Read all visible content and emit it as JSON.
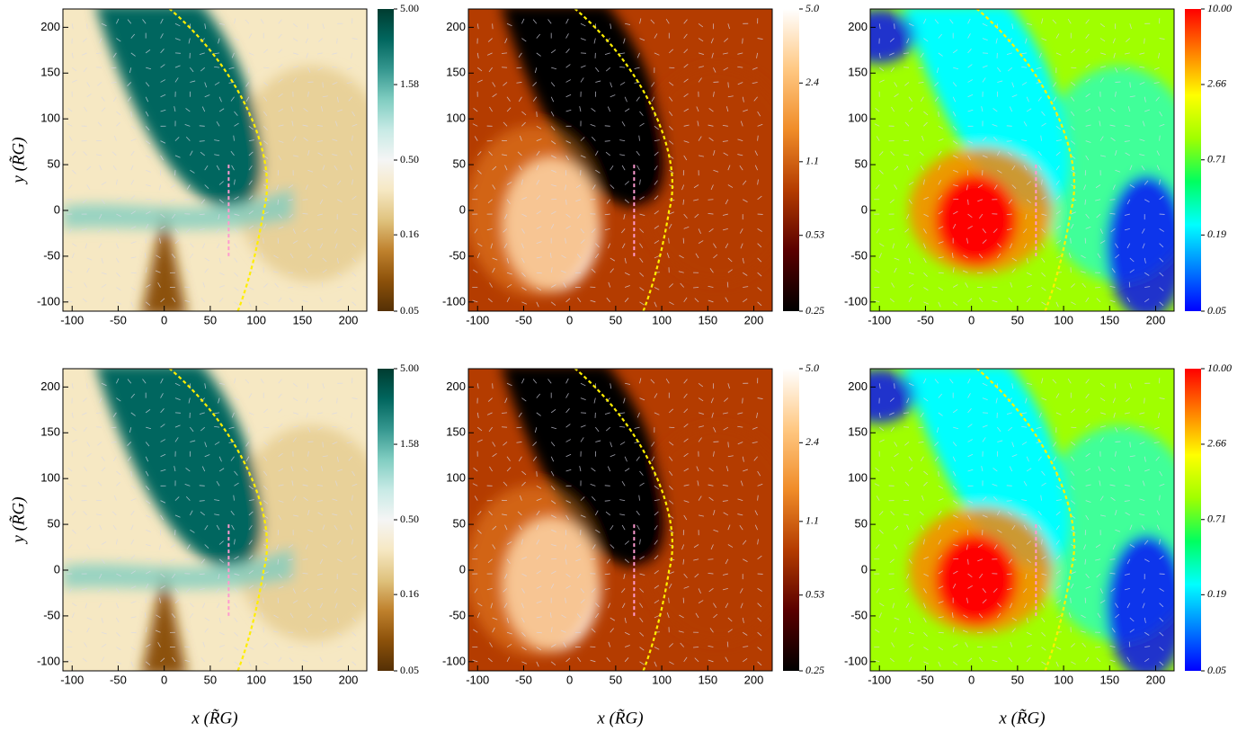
{
  "chart_data": [
    {
      "type": "heatmap",
      "xlim": [
        -110,
        220
      ],
      "ylim": [
        -110,
        220
      ],
      "xticks": [
        -100,
        -50,
        0,
        50,
        100,
        150,
        200
      ],
      "yticks": [
        -100,
        -50,
        0,
        50,
        100,
        150,
        200
      ],
      "ylabel": "y (R̃G)",
      "colorbar": {
        "log": true,
        "lim": [
          0.05,
          5
        ],
        "ticks": [
          0.05,
          0.16,
          {
            "value": 0.5,
            "label": "0.50"
          },
          1.58,
          {
            "value": 5,
            "label": "5.00"
          }
        ],
        "colors": [
          "#543005",
          "#8c510a",
          "#bf812d",
          "#dfc27d",
          "#f6e8c3",
          "#f5f5f5",
          "#c7eae5",
          "#80cdc1",
          "#35978f",
          "#01665e",
          "#003c30"
        ]
      }
    },
    {
      "type": "heatmap",
      "xlim": [
        -110,
        220
      ],
      "ylim": [
        -110,
        220
      ],
      "xticks": [
        -100,
        -50,
        0,
        50,
        100,
        150,
        200
      ],
      "yticks": [
        -100,
        -50,
        0,
        50,
        100,
        150,
        200
      ],
      "colorbar": {
        "log": true,
        "lim": [
          0.25,
          5
        ],
        "ticks": [
          0.25,
          0.53,
          1.1,
          2.4,
          {
            "value": 5,
            "label": "5.0"
          }
        ],
        "colors": [
          "#000000",
          "#5a0000",
          "#b43c00",
          "#f08c28",
          "#ffc882",
          "#ffffff"
        ]
      }
    },
    {
      "type": "heatmap",
      "xlim": [
        -110,
        220
      ],
      "ylim": [
        -110,
        220
      ],
      "xticks": [
        -100,
        -50,
        0,
        50,
        100,
        150,
        200
      ],
      "yticks": [
        -100,
        -50,
        0,
        50,
        100,
        150,
        200
      ],
      "colorbar": {
        "log": true,
        "lim": [
          0.05,
          10
        ],
        "ticks": [
          0.05,
          0.19,
          0.71,
          2.66,
          {
            "value": 10,
            "label": "10.00"
          }
        ],
        "colors": [
          "#0000ff",
          "#0080ff",
          "#00ffff",
          "#00ff60",
          "#a0ff00",
          "#ffff00",
          "#ff8000",
          "#ff0000"
        ]
      }
    },
    {
      "type": "heatmap",
      "xlim": [
        -110,
        220
      ],
      "ylim": [
        -110,
        220
      ],
      "xticks": [
        -100,
        -50,
        0,
        50,
        100,
        150,
        200
      ],
      "yticks": [
        -100,
        -50,
        0,
        50,
        100,
        150,
        200
      ],
      "ylabel": "y (R̃G)",
      "xlabel": "x (R̃G)",
      "colorbar": {
        "log": true,
        "lim": [
          0.05,
          5
        ],
        "ticks": [
          0.05,
          0.16,
          {
            "value": 0.5,
            "label": "0.50"
          },
          1.58,
          {
            "value": 5,
            "label": "5.00"
          }
        ],
        "colors": [
          "#543005",
          "#8c510a",
          "#bf812d",
          "#dfc27d",
          "#f6e8c3",
          "#f5f5f5",
          "#c7eae5",
          "#80cdc1",
          "#35978f",
          "#01665e",
          "#003c30"
        ]
      }
    },
    {
      "type": "heatmap",
      "xlim": [
        -110,
        220
      ],
      "ylim": [
        -110,
        220
      ],
      "xticks": [
        -100,
        -50,
        0,
        50,
        100,
        150,
        200
      ],
      "yticks": [
        -100,
        -50,
        0,
        50,
        100,
        150,
        200
      ],
      "xlabel": "x (R̃G)",
      "colorbar": {
        "log": true,
        "lim": [
          0.25,
          5
        ],
        "ticks": [
          0.25,
          0.53,
          1.1,
          2.4,
          {
            "value": 5,
            "label": "5.0"
          }
        ],
        "colors": [
          "#000000",
          "#5a0000",
          "#b43c00",
          "#f08c28",
          "#ffc882",
          "#ffffff"
        ]
      }
    },
    {
      "type": "heatmap",
      "xlim": [
        -110,
        220
      ],
      "ylim": [
        -110,
        220
      ],
      "xticks": [
        -100,
        -50,
        0,
        50,
        100,
        150,
        200
      ],
      "yticks": [
        -100,
        -50,
        0,
        50,
        100,
        150,
        200
      ],
      "xlabel": "x (R̃G)",
      "colorbar": {
        "log": true,
        "lim": [
          0.05,
          10
        ],
        "ticks": [
          0.05,
          0.19,
          0.71,
          2.66,
          {
            "value": 10,
            "label": "10.00"
          }
        ],
        "colors": [
          "#0000ff",
          "#0080ff",
          "#00ffff",
          "#00ff60",
          "#a0ff00",
          "#ffff00",
          "#ff8000",
          "#ff0000"
        ]
      }
    }
  ]
}
